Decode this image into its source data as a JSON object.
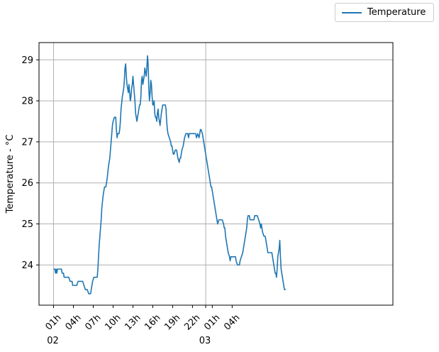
{
  "colors": {
    "series": "#1f77b4",
    "grid": "#b0b0b0",
    "axis": "#000000"
  },
  "chart_data": {
    "type": "line",
    "title": "",
    "xlabel": "",
    "ylabel": "Temperature - °C",
    "legend": {
      "entries": [
        "Temperature"
      ],
      "placement": "top-right"
    },
    "grid": true,
    "x_unit": "hour",
    "xlim": [
      -1.2,
      52.3
    ],
    "ylim": [
      23.02,
      29.42
    ],
    "x_ticks": [
      {
        "x": 1,
        "label": "01h",
        "day": "02"
      },
      {
        "x": 4,
        "label": "04h",
        "day": ""
      },
      {
        "x": 7,
        "label": "07h",
        "day": ""
      },
      {
        "x": 10,
        "label": "10h",
        "day": ""
      },
      {
        "x": 13,
        "label": "13h",
        "day": ""
      },
      {
        "x": 16,
        "label": "16h",
        "day": ""
      },
      {
        "x": 19,
        "label": "19h",
        "day": ""
      },
      {
        "x": 22,
        "label": "22h",
        "day": ""
      },
      {
        "x": 24,
        "label": "",
        "day": "03"
      },
      {
        "x": 25,
        "label": "01h",
        "day": ""
      },
      {
        "x": 28,
        "label": "04h",
        "day": ""
      }
    ],
    "y_ticks": [
      24,
      25,
      26,
      27,
      28,
      29
    ],
    "series": [
      {
        "name": "Temperature",
        "points": [
          [
            1.0,
            23.9
          ],
          [
            1.2,
            23.9
          ],
          [
            1.3,
            23.8
          ],
          [
            1.4,
            23.9
          ],
          [
            1.5,
            23.8
          ],
          [
            1.6,
            23.9
          ],
          [
            1.8,
            23.9
          ],
          [
            2.0,
            23.9
          ],
          [
            2.2,
            23.9
          ],
          [
            2.3,
            23.8
          ],
          [
            2.5,
            23.8
          ],
          [
            2.6,
            23.7
          ],
          [
            3.0,
            23.7
          ],
          [
            3.3,
            23.7
          ],
          [
            3.5,
            23.6
          ],
          [
            3.8,
            23.6
          ],
          [
            3.9,
            23.5
          ],
          [
            4.5,
            23.5
          ],
          [
            4.7,
            23.6
          ],
          [
            5.4,
            23.6
          ],
          [
            5.6,
            23.5
          ],
          [
            5.8,
            23.4
          ],
          [
            6.1,
            23.4
          ],
          [
            6.3,
            23.3
          ],
          [
            6.6,
            23.3
          ],
          [
            6.7,
            23.4
          ],
          [
            6.9,
            23.6
          ],
          [
            7.1,
            23.7
          ],
          [
            7.4,
            23.7
          ],
          [
            7.6,
            23.7
          ],
          [
            7.7,
            23.9
          ],
          [
            7.8,
            24.2
          ],
          [
            7.9,
            24.5
          ],
          [
            8.0,
            24.7
          ],
          [
            8.1,
            24.9
          ],
          [
            8.2,
            25.1
          ],
          [
            8.3,
            25.4
          ],
          [
            8.5,
            25.7
          ],
          [
            8.7,
            25.9
          ],
          [
            8.9,
            25.9
          ],
          [
            9.0,
            26.0
          ],
          [
            9.1,
            26.1
          ],
          [
            9.3,
            26.4
          ],
          [
            9.5,
            26.6
          ],
          [
            9.6,
            26.8
          ],
          [
            9.7,
            27.0
          ],
          [
            9.8,
            27.2
          ],
          [
            9.9,
            27.4
          ],
          [
            10.0,
            27.5
          ],
          [
            10.2,
            27.6
          ],
          [
            10.4,
            27.6
          ],
          [
            10.5,
            27.3
          ],
          [
            10.6,
            27.1
          ],
          [
            10.7,
            27.2
          ],
          [
            10.9,
            27.2
          ],
          [
            11.0,
            27.3
          ],
          [
            11.1,
            27.5
          ],
          [
            11.2,
            27.8
          ],
          [
            11.4,
            28.1
          ],
          [
            11.6,
            28.3
          ],
          [
            11.7,
            28.5
          ],
          [
            11.8,
            28.8
          ],
          [
            11.9,
            28.9
          ],
          [
            12.0,
            28.6
          ],
          [
            12.1,
            28.4
          ],
          [
            12.2,
            28.3
          ],
          [
            12.3,
            28.2
          ],
          [
            12.4,
            28.4
          ],
          [
            12.5,
            28.2
          ],
          [
            12.6,
            28.0
          ],
          [
            12.7,
            28.1
          ],
          [
            12.8,
            28.3
          ],
          [
            12.9,
            28.4
          ],
          [
            13.0,
            28.6
          ],
          [
            13.1,
            28.4
          ],
          [
            13.2,
            28.2
          ],
          [
            13.3,
            28.0
          ],
          [
            13.4,
            27.7
          ],
          [
            13.6,
            27.5
          ],
          [
            13.7,
            27.6
          ],
          [
            13.8,
            27.7
          ],
          [
            14.0,
            27.9
          ],
          [
            14.1,
            27.9
          ],
          [
            14.2,
            28.1
          ],
          [
            14.3,
            28.5
          ],
          [
            14.4,
            28.6
          ],
          [
            14.5,
            28.4
          ],
          [
            14.6,
            28.5
          ],
          [
            14.7,
            28.6
          ],
          [
            14.8,
            28.8
          ],
          [
            14.9,
            28.7
          ],
          [
            15.0,
            28.6
          ],
          [
            15.1,
            28.8
          ],
          [
            15.2,
            29.1
          ],
          [
            15.3,
            28.9
          ],
          [
            15.4,
            28.3
          ],
          [
            15.5,
            28.0
          ],
          [
            15.6,
            28.2
          ],
          [
            15.7,
            28.5
          ],
          [
            15.8,
            28.4
          ],
          [
            15.9,
            28.1
          ],
          [
            16.0,
            27.9
          ],
          [
            16.1,
            27.9
          ],
          [
            16.2,
            28.0
          ],
          [
            16.3,
            27.7
          ],
          [
            16.4,
            27.6
          ],
          [
            16.5,
            27.6
          ],
          [
            16.6,
            27.5
          ],
          [
            16.7,
            27.7
          ],
          [
            16.8,
            27.8
          ],
          [
            16.9,
            27.6
          ],
          [
            17.1,
            27.4
          ],
          [
            17.3,
            27.7
          ],
          [
            17.4,
            27.8
          ],
          [
            17.5,
            27.9
          ],
          [
            17.9,
            27.9
          ],
          [
            18.0,
            27.8
          ],
          [
            18.1,
            27.5
          ],
          [
            18.2,
            27.3
          ],
          [
            18.3,
            27.2
          ],
          [
            18.5,
            27.1
          ],
          [
            18.7,
            27.0
          ],
          [
            18.8,
            26.9
          ],
          [
            18.9,
            26.9
          ],
          [
            19.0,
            26.8
          ],
          [
            19.1,
            26.7
          ],
          [
            19.2,
            26.7
          ],
          [
            19.4,
            26.8
          ],
          [
            19.6,
            26.8
          ],
          [
            19.8,
            26.6
          ],
          [
            20.0,
            26.5
          ],
          [
            20.1,
            26.6
          ],
          [
            20.2,
            26.6
          ],
          [
            20.4,
            26.8
          ],
          [
            20.6,
            26.9
          ],
          [
            20.8,
            27.1
          ],
          [
            21.0,
            27.2
          ],
          [
            21.3,
            27.2
          ],
          [
            21.4,
            27.1
          ],
          [
            21.5,
            27.2
          ],
          [
            22.5,
            27.2
          ],
          [
            22.6,
            27.1
          ],
          [
            22.8,
            27.2
          ],
          [
            23.0,
            27.1
          ],
          [
            23.2,
            27.3
          ],
          [
            23.3,
            27.3
          ],
          [
            23.5,
            27.2
          ],
          [
            23.6,
            27.1
          ],
          [
            23.7,
            27.0
          ],
          [
            23.8,
            26.9
          ],
          [
            24.0,
            26.7
          ],
          [
            24.2,
            26.5
          ],
          [
            24.4,
            26.3
          ],
          [
            24.6,
            26.1
          ],
          [
            24.8,
            25.9
          ],
          [
            24.9,
            25.9
          ],
          [
            25.1,
            25.7
          ],
          [
            25.3,
            25.5
          ],
          [
            25.5,
            25.3
          ],
          [
            25.7,
            25.1
          ],
          [
            25.8,
            25.0
          ],
          [
            26.0,
            25.1
          ],
          [
            26.5,
            25.1
          ],
          [
            26.7,
            25.0
          ],
          [
            26.8,
            24.9
          ],
          [
            26.9,
            24.9
          ],
          [
            27.0,
            24.7
          ],
          [
            27.2,
            24.5
          ],
          [
            27.4,
            24.3
          ],
          [
            27.6,
            24.2
          ],
          [
            27.7,
            24.1
          ],
          [
            27.8,
            24.2
          ],
          [
            28.5,
            24.2
          ],
          [
            28.6,
            24.1
          ],
          [
            28.8,
            24.0
          ],
          [
            29.1,
            24.0
          ],
          [
            29.2,
            24.1
          ],
          [
            29.4,
            24.2
          ],
          [
            29.6,
            24.3
          ],
          [
            29.8,
            24.5
          ],
          [
            30.0,
            24.7
          ],
          [
            30.2,
            24.9
          ],
          [
            30.3,
            25.1
          ],
          [
            30.4,
            25.2
          ],
          [
            30.6,
            25.2
          ],
          [
            30.7,
            25.1
          ],
          [
            31.3,
            25.1
          ],
          [
            31.4,
            25.2
          ],
          [
            31.8,
            25.2
          ],
          [
            32.0,
            25.1
          ],
          [
            32.2,
            25.0
          ],
          [
            32.3,
            24.9
          ],
          [
            32.4,
            25.0
          ],
          [
            32.6,
            24.8
          ],
          [
            32.8,
            24.7
          ],
          [
            33.0,
            24.7
          ],
          [
            33.2,
            24.5
          ],
          [
            33.4,
            24.3
          ],
          [
            34.0,
            24.3
          ],
          [
            34.2,
            24.1
          ],
          [
            34.4,
            23.9
          ],
          [
            34.5,
            23.8
          ],
          [
            34.6,
            23.8
          ],
          [
            34.7,
            23.7
          ],
          [
            34.8,
            23.9
          ],
          [
            34.9,
            24.2
          ],
          [
            35.0,
            24.3
          ],
          [
            35.1,
            24.4
          ],
          [
            35.2,
            24.6
          ],
          [
            35.3,
            24.2
          ],
          [
            35.4,
            23.9
          ],
          [
            35.6,
            23.7
          ],
          [
            35.8,
            23.5
          ],
          [
            35.9,
            23.4
          ],
          [
            36.1,
            23.4
          ]
        ]
      }
    ]
  },
  "legend": {
    "label": "Temperature"
  }
}
